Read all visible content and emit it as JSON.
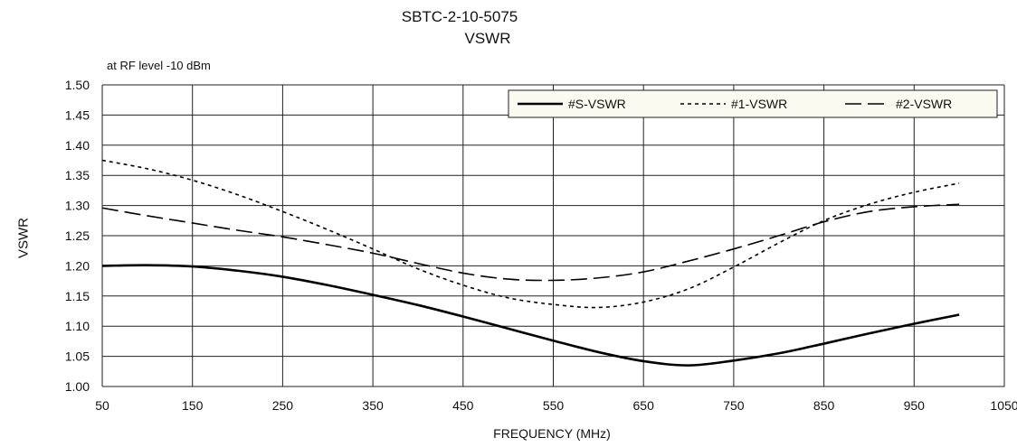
{
  "chart_data": {
    "type": "line",
    "title": "SBTC-2-10-5075",
    "subtitle": "VSWR",
    "note": "at RF level -10 dBm",
    "xlabel": "FREQUENCY (MHz)",
    "ylabel": "VSWR",
    "xlim": [
      50,
      1050
    ],
    "ylim": [
      1.0,
      1.5
    ],
    "xticks": [
      50,
      150,
      250,
      350,
      450,
      550,
      650,
      750,
      850,
      950,
      1050
    ],
    "yticks": [
      "1.00",
      "1.05",
      "1.10",
      "1.15",
      "1.20",
      "1.25",
      "1.30",
      "1.35",
      "1.40",
      "1.45",
      "1.50"
    ],
    "grid": true,
    "legend_position": "top-right",
    "series": [
      {
        "name": "#S-VSWR",
        "style": "solid",
        "x": [
          50,
          100,
          150,
          200,
          250,
          300,
          350,
          400,
          450,
          500,
          550,
          600,
          650,
          700,
          750,
          800,
          850,
          900,
          950,
          1000
        ],
        "y": [
          1.2,
          1.201,
          1.199,
          1.192,
          1.182,
          1.168,
          1.152,
          1.135,
          1.116,
          1.096,
          1.076,
          1.057,
          1.042,
          1.035,
          1.043,
          1.055,
          1.071,
          1.088,
          1.104,
          1.119
        ]
      },
      {
        "name": "#1-VSWR",
        "style": "dotted",
        "x": [
          50,
          100,
          150,
          200,
          250,
          300,
          350,
          400,
          450,
          500,
          550,
          600,
          650,
          700,
          750,
          800,
          850,
          900,
          950,
          1000
        ],
        "y": [
          1.375,
          1.361,
          1.342,
          1.318,
          1.29,
          1.26,
          1.228,
          1.195,
          1.168,
          1.147,
          1.136,
          1.131,
          1.14,
          1.162,
          1.198,
          1.238,
          1.275,
          1.302,
          1.322,
          1.337
        ]
      },
      {
        "name": "#2-VSWR",
        "style": "dashed",
        "x": [
          50,
          100,
          150,
          200,
          250,
          300,
          350,
          400,
          450,
          500,
          550,
          600,
          650,
          700,
          750,
          800,
          850,
          900,
          950,
          1000
        ],
        "y": [
          1.296,
          1.283,
          1.271,
          1.259,
          1.248,
          1.235,
          1.221,
          1.204,
          1.188,
          1.178,
          1.176,
          1.18,
          1.19,
          1.208,
          1.228,
          1.25,
          1.273,
          1.29,
          1.298,
          1.302
        ]
      }
    ]
  }
}
